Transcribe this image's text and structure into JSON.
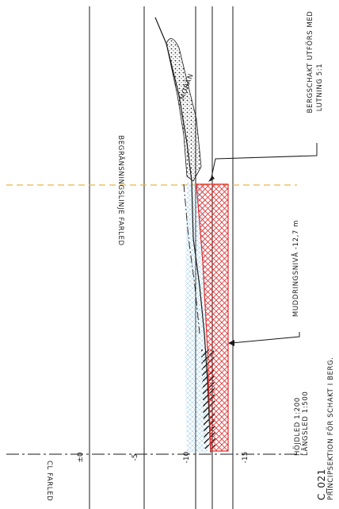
{
  "drawing": {
    "sheet_id": "C_021",
    "title": "PRINCIPSEKTION FÖR SCHAKT I BERG.",
    "scale_vertical": "HÖJDLED 1:200",
    "scale_horizontal": "LÄNGSLED 1:500"
  },
  "levels": [
    {
      "label": "±0"
    },
    {
      "label": "-5"
    },
    {
      "label": "-10"
    },
    {
      "label": "-15"
    }
  ],
  "annotations": {
    "centerline": "CL FARLED",
    "boundary": "BEGRÄNSNINGSLINJE FARLED",
    "moran": "MORÄN",
    "rock_excavation_line1": "BERGSCHAKT UTFÖRS MED",
    "rock_excavation_line2": "LUTNING 5:1",
    "dredging_level": "MUDDRINGSNIVÅ -12,7 m"
  },
  "colors": {
    "line": "#1a1a1a",
    "rock_hatch": "#e03030",
    "boundary_dash": "#e6b84a",
    "water_hatch": "#8cc4e8"
  }
}
